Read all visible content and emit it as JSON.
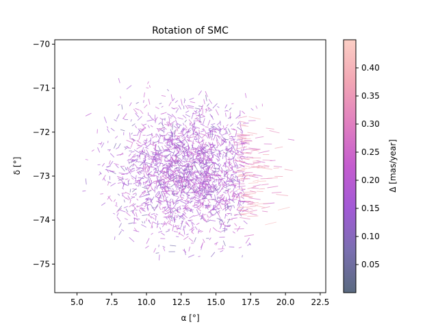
{
  "chart_data": {
    "type": "quiver",
    "title": "Rotation of SMC",
    "xlabel": "α [°]",
    "ylabel": "δ [°]",
    "xlim": [
      3.4,
      22.9
    ],
    "ylim": [
      -75.65,
      -69.9
    ],
    "xticks": [
      5.0,
      7.5,
      10.0,
      12.5,
      15.0,
      17.5,
      20.0,
      22.5
    ],
    "xtick_labels": [
      "5.0",
      "7.5",
      "10.0",
      "12.5",
      "15.0",
      "17.5",
      "20.0",
      "22.5"
    ],
    "yticks": [
      -70,
      -71,
      -72,
      -73,
      -74,
      -75
    ],
    "ytick_labels": [
      "−70",
      "−71",
      "−72",
      "−73",
      "−74",
      "−75"
    ],
    "grid": false,
    "colorbar": {
      "label": "Δ [mas/year]",
      "range": [
        0.0,
        0.45
      ],
      "ticks": [
        0.05,
        0.1,
        0.15,
        0.2,
        0.25,
        0.3,
        0.35,
        0.4
      ],
      "tick_labels": [
        "0.05",
        "0.10",
        "0.15",
        "0.20",
        "0.25",
        "0.30",
        "0.35",
        "0.40"
      ],
      "colors": [
        "#5a6a80",
        "#7a6fb0",
        "#a25ad6",
        "#c45ccf",
        "#e07fc0",
        "#f2a6b4",
        "#fccfc5"
      ]
    },
    "field": {
      "center": [
        13.0,
        -72.9
      ],
      "radius_x": 9.5,
      "radius_y": 2.6,
      "vector_count": 2200,
      "high_delta_region": {
        "alpha_range": [
          17.0,
          22.8
        ],
        "delta_range": [
          -74.5,
          -71.6
        ]
      }
    }
  }
}
